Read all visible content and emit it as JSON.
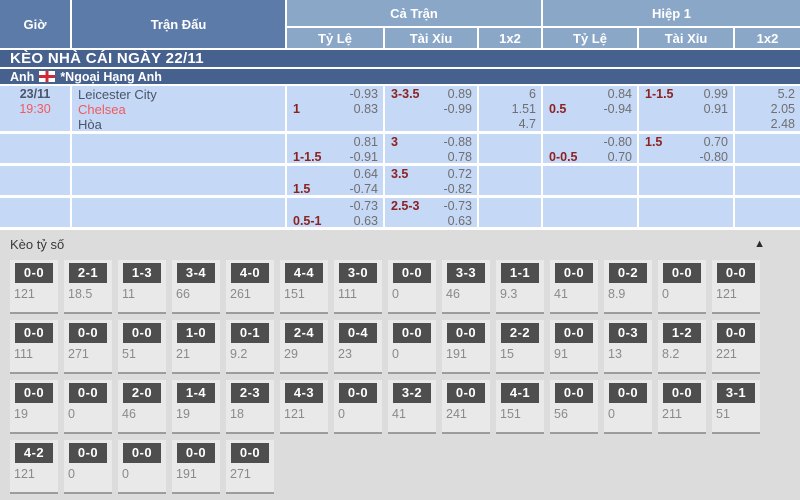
{
  "colors": {
    "header_dark_blue": "#5d7ba8",
    "header_light_blue": "#8ba7c8",
    "section_bar_blue": "#47618e",
    "row_blue": "#c5d8f5",
    "text_dark": "#4a5568",
    "team_red": "#f2595f",
    "handicap_maroon": "#8c2222",
    "odds_gray": "#6f6f6f",
    "section_bg": "#dcdcdc",
    "panel_bg": "#e9e9e9",
    "panel_border": "#9c9c9c",
    "score_box_dark": "#4e4e4e",
    "score_value_gray": "#8a8a8a"
  },
  "table": {
    "headers": {
      "gio": "Giờ",
      "tran_dau": "Trận Đấu",
      "ca_tran": "Cả Trận",
      "hiep_1": "Hiệp 1",
      "ty_le": "Tỷ Lệ",
      "tai_xiu": "Tài Xỉu",
      "one_x_two": "1x2"
    },
    "section_title": "KÈO NHÀ CÁI NGÀY 22/11",
    "league": {
      "country": "Anh",
      "flag": "england-flag",
      "name": "*Ngoại Hạng Anh"
    },
    "rows": [
      {
        "time": {
          "date": "23/11",
          "hour": "19:30"
        },
        "teams": [
          "Leicester City",
          "Chelsea",
          "Hòa"
        ],
        "ft_hdp": [
          [
            "",
            "-0.93"
          ],
          [
            "1",
            "0.83"
          ]
        ],
        "ft_ou": [
          [
            "3-3.5",
            "0.89"
          ],
          [
            "",
            "-0.99"
          ]
        ],
        "ft_1x2": [
          "6",
          "1.51",
          "4.7"
        ],
        "h1_hdp": [
          [
            "",
            "0.84"
          ],
          [
            "0.5",
            "-0.94"
          ]
        ],
        "h1_ou": [
          [
            "1-1.5",
            "0.99"
          ],
          [
            "",
            "0.91"
          ]
        ],
        "h1_1x2": [
          "5.2",
          "2.05",
          "2.48"
        ]
      },
      {
        "time": {
          "date": "",
          "hour": ""
        },
        "teams": [],
        "ft_hdp": [
          [
            "",
            "0.81"
          ],
          [
            "1-1.5",
            "-0.91"
          ]
        ],
        "ft_ou": [
          [
            "3",
            "-0.88"
          ],
          [
            "",
            "0.78"
          ]
        ],
        "ft_1x2": [],
        "h1_hdp": [
          [
            "",
            "-0.80"
          ],
          [
            "0-0.5",
            "0.70"
          ]
        ],
        "h1_ou": [
          [
            "1.5",
            "0.70"
          ],
          [
            "",
            "-0.80"
          ]
        ],
        "h1_1x2": []
      },
      {
        "time": {
          "date": "",
          "hour": ""
        },
        "teams": [],
        "ft_hdp": [
          [
            "",
            "0.64"
          ],
          [
            "1.5",
            "-0.74"
          ]
        ],
        "ft_ou": [
          [
            "3.5",
            "0.72"
          ],
          [
            "",
            "-0.82"
          ]
        ],
        "ft_1x2": [],
        "h1_hdp": [
          [
            "",
            ""
          ],
          [
            "",
            ""
          ]
        ],
        "h1_ou": [
          [
            "",
            ""
          ],
          [
            "",
            ""
          ]
        ],
        "h1_1x2": []
      },
      {
        "time": {
          "date": "",
          "hour": ""
        },
        "teams": [],
        "ft_hdp": [
          [
            "",
            "-0.73"
          ],
          [
            "0.5-1",
            "0.63"
          ]
        ],
        "ft_ou": [
          [
            "2.5-3",
            "-0.73"
          ],
          [
            "",
            "0.63"
          ]
        ],
        "ft_1x2": [],
        "h1_hdp": [
          [
            "",
            ""
          ],
          [
            "",
            ""
          ]
        ],
        "h1_ou": [
          [
            "",
            ""
          ],
          [
            "",
            ""
          ]
        ],
        "h1_1x2": []
      }
    ]
  },
  "score_section": {
    "title": "Kèo tỷ số",
    "collapse_icon": "▲",
    "rows": [
      [
        {
          "score": "0-0",
          "odds": "121"
        },
        {
          "score": "2-1",
          "odds": "18.5"
        },
        {
          "score": "1-3",
          "odds": "11"
        },
        {
          "score": "3-4",
          "odds": "66"
        },
        {
          "score": "4-0",
          "odds": "261"
        },
        {
          "score": "4-4",
          "odds": "151"
        },
        {
          "score": "3-0",
          "odds": "111"
        },
        {
          "score": "0-0",
          "odds": "0"
        },
        {
          "score": "3-3",
          "odds": "46"
        },
        {
          "score": "1-1",
          "odds": "9.3"
        },
        {
          "score": "0-0",
          "odds": "41"
        },
        {
          "score": "0-2",
          "odds": "8.9"
        },
        {
          "score": "0-0",
          "odds": "0"
        },
        {
          "score": "0-0",
          "odds": "121"
        }
      ],
      [
        {
          "score": "0-0",
          "odds": "111"
        },
        {
          "score": "0-0",
          "odds": "271"
        },
        {
          "score": "0-0",
          "odds": "51"
        },
        {
          "score": "1-0",
          "odds": "21"
        },
        {
          "score": "0-1",
          "odds": "9.2"
        },
        {
          "score": "2-4",
          "odds": "29"
        },
        {
          "score": "0-4",
          "odds": "23"
        },
        {
          "score": "0-0",
          "odds": "0"
        },
        {
          "score": "0-0",
          "odds": "191"
        },
        {
          "score": "2-2",
          "odds": "15"
        },
        {
          "score": "0-0",
          "odds": "91"
        },
        {
          "score": "0-3",
          "odds": "13"
        },
        {
          "score": "1-2",
          "odds": "8.2"
        },
        {
          "score": "0-0",
          "odds": "221"
        }
      ],
      [
        {
          "score": "0-0",
          "odds": "19"
        },
        {
          "score": "0-0",
          "odds": "0"
        },
        {
          "score": "2-0",
          "odds": "46"
        },
        {
          "score": "1-4",
          "odds": "19"
        },
        {
          "score": "2-3",
          "odds": "18"
        },
        {
          "score": "4-3",
          "odds": "121"
        },
        {
          "score": "0-0",
          "odds": "0"
        },
        {
          "score": "3-2",
          "odds": "41"
        },
        {
          "score": "0-0",
          "odds": "241"
        },
        {
          "score": "4-1",
          "odds": "151"
        },
        {
          "score": "0-0",
          "odds": "56"
        },
        {
          "score": "0-0",
          "odds": "0"
        },
        {
          "score": "0-0",
          "odds": "211"
        },
        {
          "score": "3-1",
          "odds": "51"
        }
      ],
      [
        {
          "score": "4-2",
          "odds": "121"
        },
        {
          "score": "0-0",
          "odds": "0"
        },
        {
          "score": "0-0",
          "odds": "0"
        },
        {
          "score": "0-0",
          "odds": "191"
        },
        {
          "score": "0-0",
          "odds": "271"
        }
      ]
    ]
  }
}
